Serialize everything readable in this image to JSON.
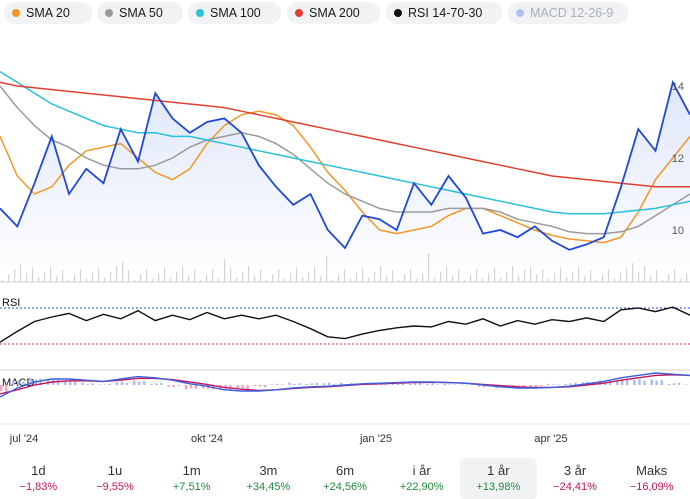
{
  "indicators": [
    {
      "label": "SMA 20",
      "color": "#f29727"
    },
    {
      "label": "SMA 50",
      "color": "#9a9a9a"
    },
    {
      "label": "SMA 100",
      "color": "#27c1d9"
    },
    {
      "label": "SMA 200",
      "color": "#e0412f"
    },
    {
      "label": "RSI 14-70-30",
      "color": "#111111"
    },
    {
      "label": "MACD 12-26-9",
      "color": "#6e8bf0"
    }
  ],
  "chart_data": {
    "type": "line",
    "x_tick_labels": [
      "jul '24",
      "okt '24",
      "jan '25",
      "apr '25"
    ],
    "y_tick_labels": [
      "10",
      "12",
      "14"
    ],
    "ylim": [
      9,
      15
    ],
    "price_color": "#1f49d6",
    "series": [
      {
        "name": "SMA 20",
        "color": "#f29727",
        "values": [
          12.6,
          11.5,
          11.0,
          11.2,
          11.8,
          12.2,
          12.3,
          12.4,
          12.0,
          11.6,
          11.4,
          11.7,
          12.4,
          12.9,
          13.2,
          13.3,
          13.2,
          12.9,
          12.3,
          11.6,
          11.1,
          10.5,
          10.0,
          9.9,
          10.0,
          10.1,
          10.4,
          10.6,
          10.6,
          10.4,
          10.2,
          10.0,
          9.85,
          9.75,
          9.7,
          9.65,
          9.8,
          10.5,
          11.4,
          12.0,
          12.6
        ]
      },
      {
        "name": "SMA 50",
        "color": "#9a9a9a",
        "values": [
          14.0,
          13.4,
          12.9,
          12.5,
          12.3,
          12.0,
          11.8,
          11.7,
          11.7,
          11.8,
          12.0,
          12.3,
          12.5,
          12.6,
          12.7,
          12.6,
          12.4,
          12.1,
          11.7,
          11.3,
          11.0,
          10.8,
          10.6,
          10.5,
          10.5,
          10.5,
          10.6,
          10.6,
          10.6,
          10.5,
          10.3,
          10.2,
          10.1,
          9.95,
          9.9,
          9.9,
          9.95,
          10.1,
          10.4,
          10.7,
          11.0
        ]
      },
      {
        "name": "SMA 100",
        "color": "#27c1d9",
        "values": [
          14.4,
          14.1,
          13.8,
          13.5,
          13.3,
          13.1,
          12.9,
          12.8,
          12.7,
          12.7,
          12.6,
          12.6,
          12.5,
          12.4,
          12.3,
          12.2,
          12.1,
          12.0,
          11.9,
          11.8,
          11.7,
          11.6,
          11.5,
          11.4,
          11.3,
          11.2,
          11.1,
          11.0,
          10.9,
          10.8,
          10.7,
          10.6,
          10.5,
          10.45,
          10.45,
          10.45,
          10.5,
          10.55,
          10.6,
          10.7,
          10.8
        ]
      },
      {
        "name": "SMA 200",
        "color": "#e0412f",
        "values": [
          14.1,
          14.0,
          13.95,
          13.9,
          13.85,
          13.8,
          13.75,
          13.7,
          13.65,
          13.6,
          13.55,
          13.5,
          13.45,
          13.4,
          13.3,
          13.2,
          13.1,
          13.0,
          12.9,
          12.8,
          12.7,
          12.6,
          12.5,
          12.4,
          12.3,
          12.2,
          12.1,
          12.0,
          11.9,
          11.8,
          11.7,
          11.6,
          11.5,
          11.45,
          11.4,
          11.35,
          11.3,
          11.25,
          11.2,
          11.2,
          11.2
        ]
      },
      {
        "name": "price",
        "values": [
          10.6,
          10.1,
          11.3,
          12.6,
          11.0,
          11.7,
          11.3,
          12.8,
          11.9,
          13.8,
          13.1,
          12.7,
          13.0,
          13.1,
          12.7,
          11.8,
          11.2,
          10.7,
          11.0,
          10.0,
          9.5,
          10.4,
          10.3,
          10.0,
          11.3,
          10.7,
          11.5,
          10.9,
          9.9,
          10.0,
          9.8,
          10.1,
          9.7,
          9.45,
          9.6,
          9.8,
          11.2,
          12.8,
          12.2,
          14.1,
          13.2
        ]
      }
    ],
    "rsi": {
      "label": "RSI",
      "upper": 70,
      "lower": 30,
      "values": [
        32,
        44,
        55,
        60,
        64,
        56,
        63,
        58,
        67,
        56,
        62,
        57,
        65,
        58,
        62,
        58,
        62,
        55,
        47,
        38,
        36,
        41,
        45,
        48,
        50,
        49,
        55,
        52,
        58,
        50,
        56,
        52,
        57,
        55,
        59,
        55,
        68,
        70,
        66,
        71,
        62
      ]
    },
    "macd": {
      "label": "MACD",
      "macd_values": [
        -0.2,
        -0.05,
        0.05,
        0.1,
        0.1,
        0.08,
        0.06,
        0.1,
        0.14,
        0.12,
        0.08,
        0.02,
        -0.02,
        -0.08,
        -0.1,
        -0.1,
        -0.08,
        -0.05,
        -0.03,
        -0.02,
        0.0,
        0.02,
        0.03,
        0.04,
        0.05,
        0.05,
        0.04,
        0.03,
        0.0,
        -0.03,
        -0.05,
        -0.05,
        -0.04,
        -0.02,
        0.02,
        0.06,
        0.12,
        0.16,
        0.2,
        0.18,
        0.16
      ],
      "signal_values": [
        -0.15,
        -0.08,
        0.0,
        0.05,
        0.07,
        0.07,
        0.06,
        0.08,
        0.11,
        0.11,
        0.09,
        0.05,
        0.01,
        -0.04,
        -0.07,
        -0.09,
        -0.08,
        -0.06,
        -0.04,
        -0.03,
        -0.01,
        0.01,
        0.02,
        0.03,
        0.04,
        0.045,
        0.04,
        0.03,
        0.01,
        -0.01,
        -0.03,
        -0.04,
        -0.04,
        -0.03,
        0.0,
        0.03,
        0.08,
        0.12,
        0.16,
        0.17,
        0.16
      ]
    }
  },
  "periods": [
    {
      "label": "1d",
      "change": "−1,83%",
      "dir": "neg"
    },
    {
      "label": "1u",
      "change": "−9,55%",
      "dir": "neg"
    },
    {
      "label": "1m",
      "change": "+7,51%",
      "dir": "pos"
    },
    {
      "label": "3m",
      "change": "+34,45%",
      "dir": "pos"
    },
    {
      "label": "6m",
      "change": "+24,56%",
      "dir": "pos"
    },
    {
      "label": "i år",
      "change": "+22,90%",
      "dir": "pos"
    },
    {
      "label": "1 år",
      "change": "+13,98%",
      "dir": "pos",
      "active": true
    },
    {
      "label": "3 år",
      "change": "−24,41%",
      "dir": "neg"
    },
    {
      "label": "Maks",
      "change": "−16,09%",
      "dir": "neg"
    }
  ]
}
